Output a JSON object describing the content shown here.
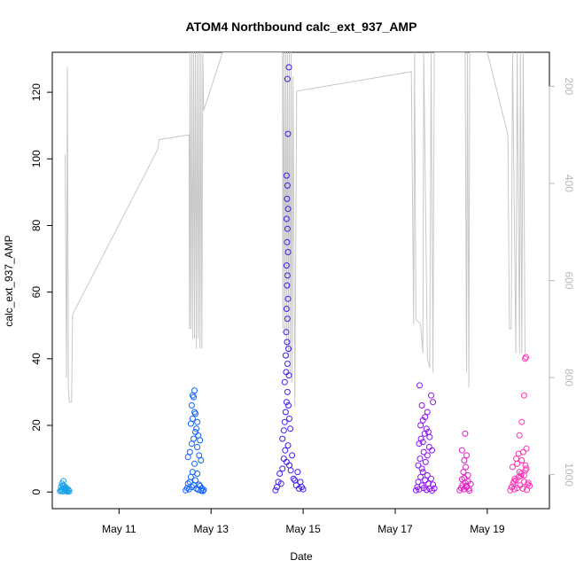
{
  "chart_data": {
    "type": "scatter",
    "title": "ATOM4 Northbound calc_ext_937_AMP",
    "xlabel": "Date",
    "ylabel": "calc_ext_937_AMP",
    "x_ticks": [
      "May 11",
      "May 13",
      "May 15",
      "May 17",
      "May 19"
    ],
    "x_range_days": [
      9.55,
      20.35
    ],
    "y_ticks": [
      "0",
      "20",
      "40",
      "60",
      "80",
      "100",
      "120"
    ],
    "ylim": [
      -5,
      132
    ],
    "right_axis": {
      "ticks": [
        "200",
        "400",
        "600",
        "800",
        "1000"
      ],
      "range_top_to_bottom": [
        130,
        1070
      ]
    },
    "grid": false,
    "depth_trace": [
      [
        9.83,
        340
      ],
      [
        9.86,
        800
      ],
      [
        9.88,
        160
      ],
      [
        9.9,
        820
      ],
      [
        9.92,
        850
      ],
      [
        9.97,
        850
      ],
      [
        9.99,
        670
      ],
      [
        11.84,
        330
      ],
      [
        11.87,
        310
      ],
      [
        12.52,
        300
      ],
      [
        12.53,
        700
      ],
      [
        12.54,
        130
      ],
      [
        12.56,
        700
      ],
      [
        12.58,
        130
      ],
      [
        12.6,
        720
      ],
      [
        12.62,
        130
      ],
      [
        12.64,
        720
      ],
      [
        12.66,
        130
      ],
      [
        12.68,
        740
      ],
      [
        12.7,
        130
      ],
      [
        12.72,
        720
      ],
      [
        12.74,
        130
      ],
      [
        12.76,
        740
      ],
      [
        12.78,
        130
      ],
      [
        12.8,
        740
      ],
      [
        12.82,
        130
      ],
      [
        12.84,
        250
      ],
      [
        13.25,
        130
      ],
      [
        13.5,
        130
      ],
      [
        14.0,
        130
      ],
      [
        14.5,
        130
      ],
      [
        14.55,
        130
      ],
      [
        14.56,
        700
      ],
      [
        14.58,
        130
      ],
      [
        14.6,
        710
      ],
      [
        14.62,
        130
      ],
      [
        14.64,
        740
      ],
      [
        14.66,
        130
      ],
      [
        14.68,
        760
      ],
      [
        14.7,
        130
      ],
      [
        14.72,
        790
      ],
      [
        14.74,
        130
      ],
      [
        14.76,
        810
      ],
      [
        14.78,
        180
      ],
      [
        14.82,
        860
      ],
      [
        14.86,
        210
      ],
      [
        17.35,
        170
      ],
      [
        17.4,
        690
      ],
      [
        17.42,
        130
      ],
      [
        17.45,
        680
      ],
      [
        17.55,
        690
      ],
      [
        17.6,
        750
      ],
      [
        17.62,
        130
      ],
      [
        17.7,
        760
      ],
      [
        17.75,
        780
      ],
      [
        17.78,
        130
      ],
      [
        17.82,
        790
      ],
      [
        17.85,
        130
      ],
      [
        18.52,
        130
      ],
      [
        18.55,
        790
      ],
      [
        18.57,
        130
      ],
      [
        18.6,
        820
      ],
      [
        18.62,
        130
      ],
      [
        18.68,
        130
      ],
      [
        19.0,
        130
      ],
      [
        19.45,
        300
      ],
      [
        19.48,
        700
      ],
      [
        19.52,
        700
      ],
      [
        19.55,
        130
      ],
      [
        19.62,
        750
      ],
      [
        19.65,
        130
      ],
      [
        19.7,
        750
      ],
      [
        19.72,
        130
      ],
      [
        19.75,
        750
      ],
      [
        19.78,
        130
      ],
      [
        19.82,
        750
      ]
    ],
    "point_colors": [
      "#1aa2e8",
      "#0f61ff",
      "#3c1ef0",
      "#8a12f5",
      "#e51ec6",
      "#ff2fb6"
    ],
    "series": [
      {
        "x": [
          9.72,
          9.74,
          9.76,
          9.78,
          9.8,
          9.82,
          9.84,
          9.86,
          9.88,
          9.9,
          9.92,
          9.74,
          9.78,
          9.82,
          9.86,
          9.9,
          9.76,
          9.8,
          9.84,
          9.79
        ],
        "y": [
          0.3,
          0.5,
          0.8,
          0.2,
          1.0,
          0.4,
          0.6,
          0.3,
          0.1,
          0.5,
          0.2,
          1.5,
          2.0,
          1.2,
          0.9,
          0.7,
          2.5,
          1.8,
          1.4,
          3.3
        ]
      },
      {
        "x": [
          12.45,
          12.48,
          12.5,
          12.52,
          12.54,
          12.56,
          12.58,
          12.6,
          12.62,
          12.64,
          12.66,
          12.68,
          12.7,
          12.72,
          12.74,
          12.76,
          12.78,
          12.8,
          12.82,
          12.84,
          12.5,
          12.54,
          12.58,
          12.62,
          12.66,
          12.7,
          12.74,
          12.78,
          12.56,
          12.6,
          12.64,
          12.68,
          12.72,
          12.76,
          12.58,
          12.62,
          12.66,
          12.7,
          12.6,
          12.64
        ],
        "y": [
          0.5,
          1.2,
          2.5,
          0.8,
          3.0,
          4.5,
          1.5,
          6.0,
          2.0,
          8.5,
          3.5,
          1.0,
          5.5,
          0.7,
          2.2,
          1.8,
          0.4,
          1.1,
          0.3,
          0.6,
          10.5,
          12.0,
          14.5,
          16.0,
          18.0,
          13.5,
          11.0,
          9.5,
          20.5,
          22.0,
          24.0,
          19.0,
          17.0,
          15.5,
          26.0,
          28.5,
          23.5,
          21.0,
          29.0,
          30.5
        ]
      },
      {
        "x": [
          14.4,
          14.43,
          14.46,
          14.49,
          14.52,
          14.55,
          14.58,
          14.61,
          14.64,
          14.67,
          14.7,
          14.73,
          14.76,
          14.79,
          14.82,
          14.85,
          14.88,
          14.91,
          14.94,
          14.97,
          15.0,
          14.55,
          14.58,
          14.6,
          14.62,
          14.64,
          14.66,
          14.68,
          14.7,
          14.72,
          14.6,
          14.63,
          14.66,
          14.69,
          14.62,
          14.65,
          14.68,
          14.63,
          14.66,
          14.64,
          14.67,
          14.65,
          14.66,
          14.64,
          14.67,
          14.65,
          14.66,
          14.64,
          14.67,
          14.65,
          14.66,
          14.64,
          14.67,
          14.66,
          14.69
        ],
        "y": [
          0.5,
          1.5,
          3.0,
          5.5,
          2.5,
          7.0,
          10.0,
          12.5,
          9.0,
          14.0,
          8.0,
          6.5,
          11.0,
          4.0,
          3.5,
          2.0,
          6.0,
          1.0,
          3.0,
          1.5,
          0.8,
          16.0,
          18.5,
          21.0,
          24.0,
          27.0,
          30.0,
          26.0,
          22.0,
          19.0,
          33.0,
          36.0,
          38.5,
          35.0,
          41.0,
          45.0,
          43.0,
          48.0,
          52.0,
          55.0,
          58.0,
          62.0,
          65.0,
          68.0,
          72.0,
          75.0,
          79.0,
          82.0,
          85.0,
          88.0,
          92.0,
          95.0,
          107.5,
          124.0,
          127.5
        ]
      },
      {
        "x": [
          17.45,
          17.48,
          17.5,
          17.52,
          17.55,
          17.58,
          17.6,
          17.62,
          17.65,
          17.68,
          17.7,
          17.72,
          17.75,
          17.78,
          17.8,
          17.82,
          17.85,
          17.5,
          17.54,
          17.58,
          17.62,
          17.66,
          17.7,
          17.74,
          17.52,
          17.56,
          17.6,
          17.64,
          17.68,
          17.72,
          17.55,
          17.6,
          17.65,
          17.7,
          17.75,
          17.8,
          17.53,
          17.58,
          17.78,
          17.82
        ],
        "y": [
          0.5,
          1.5,
          3.0,
          0.8,
          4.5,
          2.0,
          6.0,
          1.2,
          3.5,
          0.6,
          5.0,
          2.5,
          1.0,
          4.0,
          0.4,
          2.2,
          1.1,
          8.0,
          10.0,
          7.0,
          12.0,
          9.0,
          11.0,
          13.5,
          14.5,
          16.0,
          15.0,
          17.5,
          19.0,
          18.0,
          20.0,
          21.5,
          22.5,
          24.0,
          16.5,
          12.5,
          32.0,
          26.0,
          29.0,
          27.0
        ]
      },
      {
        "x": [
          18.4,
          18.43,
          18.46,
          18.49,
          18.52,
          18.55,
          18.58,
          18.61,
          18.64,
          18.45,
          18.5,
          18.55,
          18.6,
          18.48,
          18.53,
          18.58,
          18.5,
          18.55,
          18.45,
          18.52
        ],
        "y": [
          0.5,
          1.2,
          2.0,
          0.8,
          2.8,
          1.5,
          3.2,
          0.4,
          2.4,
          3.8,
          4.2,
          1.8,
          1.0,
          6.0,
          7.5,
          5.0,
          9.5,
          11.0,
          12.5,
          17.5
        ]
      },
      {
        "x": [
          19.5,
          19.53,
          19.56,
          19.59,
          19.62,
          19.65,
          19.68,
          19.71,
          19.74,
          19.77,
          19.8,
          19.83,
          19.86,
          19.89,
          19.92,
          19.55,
          19.6,
          19.65,
          19.7,
          19.75,
          19.8,
          19.85,
          19.58,
          19.63,
          19.68,
          19.73,
          19.78,
          19.83,
          19.88,
          19.7,
          19.75,
          19.8,
          19.85,
          19.82,
          19.84
        ],
        "y": [
          0.5,
          1.5,
          2.5,
          0.8,
          3.5,
          1.2,
          4.5,
          2.0,
          5.5,
          1.0,
          3.0,
          6.5,
          0.6,
          2.8,
          1.8,
          7.5,
          4.0,
          8.5,
          6.0,
          9.5,
          5.0,
          7.0,
          3.2,
          10.0,
          11.5,
          4.8,
          12.0,
          8.0,
          2.2,
          17.0,
          21.0,
          29.0,
          13.0,
          40.0,
          40.5
        ]
      }
    ]
  }
}
